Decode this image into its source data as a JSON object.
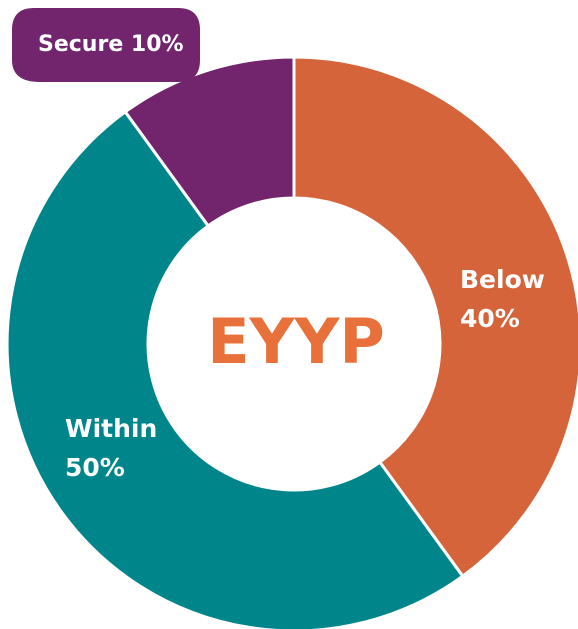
{
  "chart_data": {
    "type": "pie",
    "donut": true,
    "center_text": "EYYP",
    "center_color": "#e8703a",
    "categories": [
      "Below",
      "Within",
      "Secure"
    ],
    "values": [
      40,
      50,
      10
    ],
    "value_labels": [
      "40%",
      "50%",
      "10%"
    ],
    "colors": [
      "#d6643a",
      "#00868a",
      "#72246c"
    ]
  }
}
